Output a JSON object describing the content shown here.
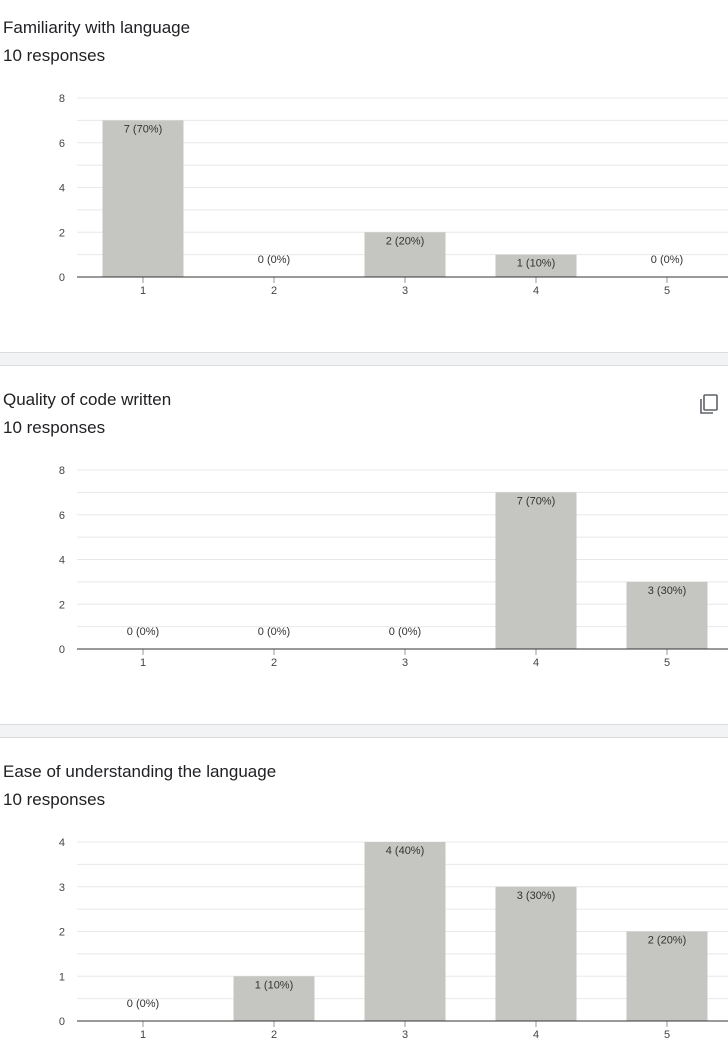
{
  "colors": {
    "bar": "#c5c6c1",
    "grid": "#e8e8e8",
    "axis": "#333333",
    "text": "#444444"
  },
  "questions": [
    {
      "title": "Familiarity with language",
      "responses": "10 responses",
      "copy_icon": false
    },
    {
      "title": "Quality of code written",
      "responses": "10 responses",
      "copy_icon": "copy-icon"
    },
    {
      "title": "Ease of understanding the language",
      "responses": "10 responses",
      "copy_icon": false
    }
  ],
  "chart_data": [
    {
      "type": "bar",
      "categories": [
        "1",
        "2",
        "3",
        "4",
        "5"
      ],
      "values": [
        7,
        0,
        2,
        1,
        0
      ],
      "labels": [
        "7 (70%)",
        "0 (0%)",
        "2 (20%)",
        "1 (10%)",
        "0 (0%)"
      ],
      "ylim": [
        0,
        8
      ],
      "yticks": [
        0,
        2,
        4,
        6,
        8
      ]
    },
    {
      "type": "bar",
      "categories": [
        "1",
        "2",
        "3",
        "4",
        "5"
      ],
      "values": [
        0,
        0,
        0,
        7,
        3
      ],
      "labels": [
        "0 (0%)",
        "0 (0%)",
        "0 (0%)",
        "7 (70%)",
        "3 (30%)"
      ],
      "ylim": [
        0,
        8
      ],
      "yticks": [
        0,
        2,
        4,
        6,
        8
      ]
    },
    {
      "type": "bar",
      "categories": [
        "1",
        "2",
        "3",
        "4",
        "5"
      ],
      "values": [
        0,
        1,
        4,
        3,
        2
      ],
      "labels": [
        "0 (0%)",
        "1 (10%)",
        "4 (40%)",
        "3 (30%)",
        "2 (20%)"
      ],
      "ylim": [
        0,
        4
      ],
      "yticks": [
        0,
        1,
        2,
        3,
        4
      ]
    }
  ]
}
